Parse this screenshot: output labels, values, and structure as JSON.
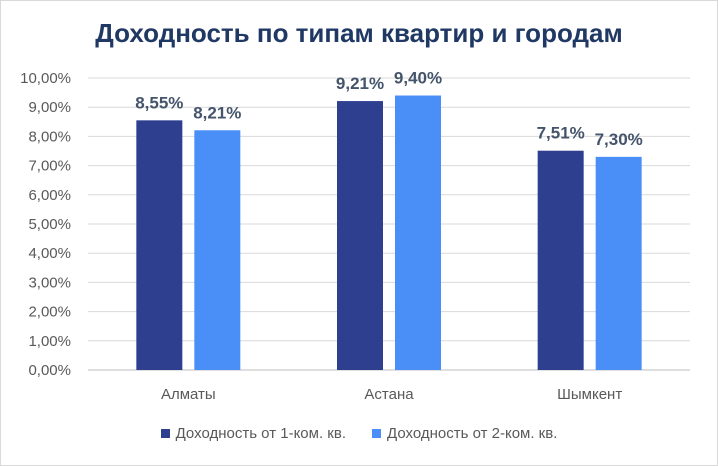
{
  "chart_data": {
    "type": "bar",
    "title": "Доходность по типам квартир и городам",
    "categories": [
      "Алматы",
      "Астана",
      "Шымкент"
    ],
    "series": [
      {
        "name": "Доходность от 1-ком. кв.",
        "color": "#2e3f8f",
        "values": [
          8.55,
          9.21,
          7.51
        ],
        "labels": [
          "8,55%",
          "9,21%",
          "7,51%"
        ]
      },
      {
        "name": "Доходность от 2-ком. кв.",
        "color": "#4a8ff7",
        "values": [
          8.21,
          9.4,
          7.3
        ],
        "labels": [
          "8,21%",
          "9,40%",
          "7,30%"
        ]
      }
    ],
    "ylim": [
      0,
      10
    ],
    "yticks": [
      "0,00%",
      "1,00%",
      "2,00%",
      "3,00%",
      "4,00%",
      "5,00%",
      "6,00%",
      "7,00%",
      "8,00%",
      "9,00%",
      "10,00%"
    ],
    "grid": true,
    "legend_position": "bottom"
  }
}
